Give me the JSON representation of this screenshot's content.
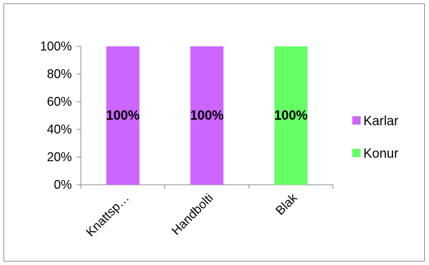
{
  "chart_data": {
    "type": "bar",
    "stacked": true,
    "percent_stacked": true,
    "categories": [
      "Knattsp…",
      "Handbolti",
      "Blak"
    ],
    "series": [
      {
        "name": "Karlar",
        "color": "#cc66ff",
        "values": [
          100,
          100,
          0
        ]
      },
      {
        "name": "Konur",
        "color": "#66ff66",
        "values": [
          0,
          0,
          100
        ]
      }
    ],
    "data_labels": [
      "100%",
      "100%",
      "100%"
    ],
    "yticks": [
      "0%",
      "20%",
      "40%",
      "60%",
      "80%",
      "100%"
    ],
    "ylim": [
      0,
      100
    ],
    "grid": false,
    "legend_position": "right"
  }
}
